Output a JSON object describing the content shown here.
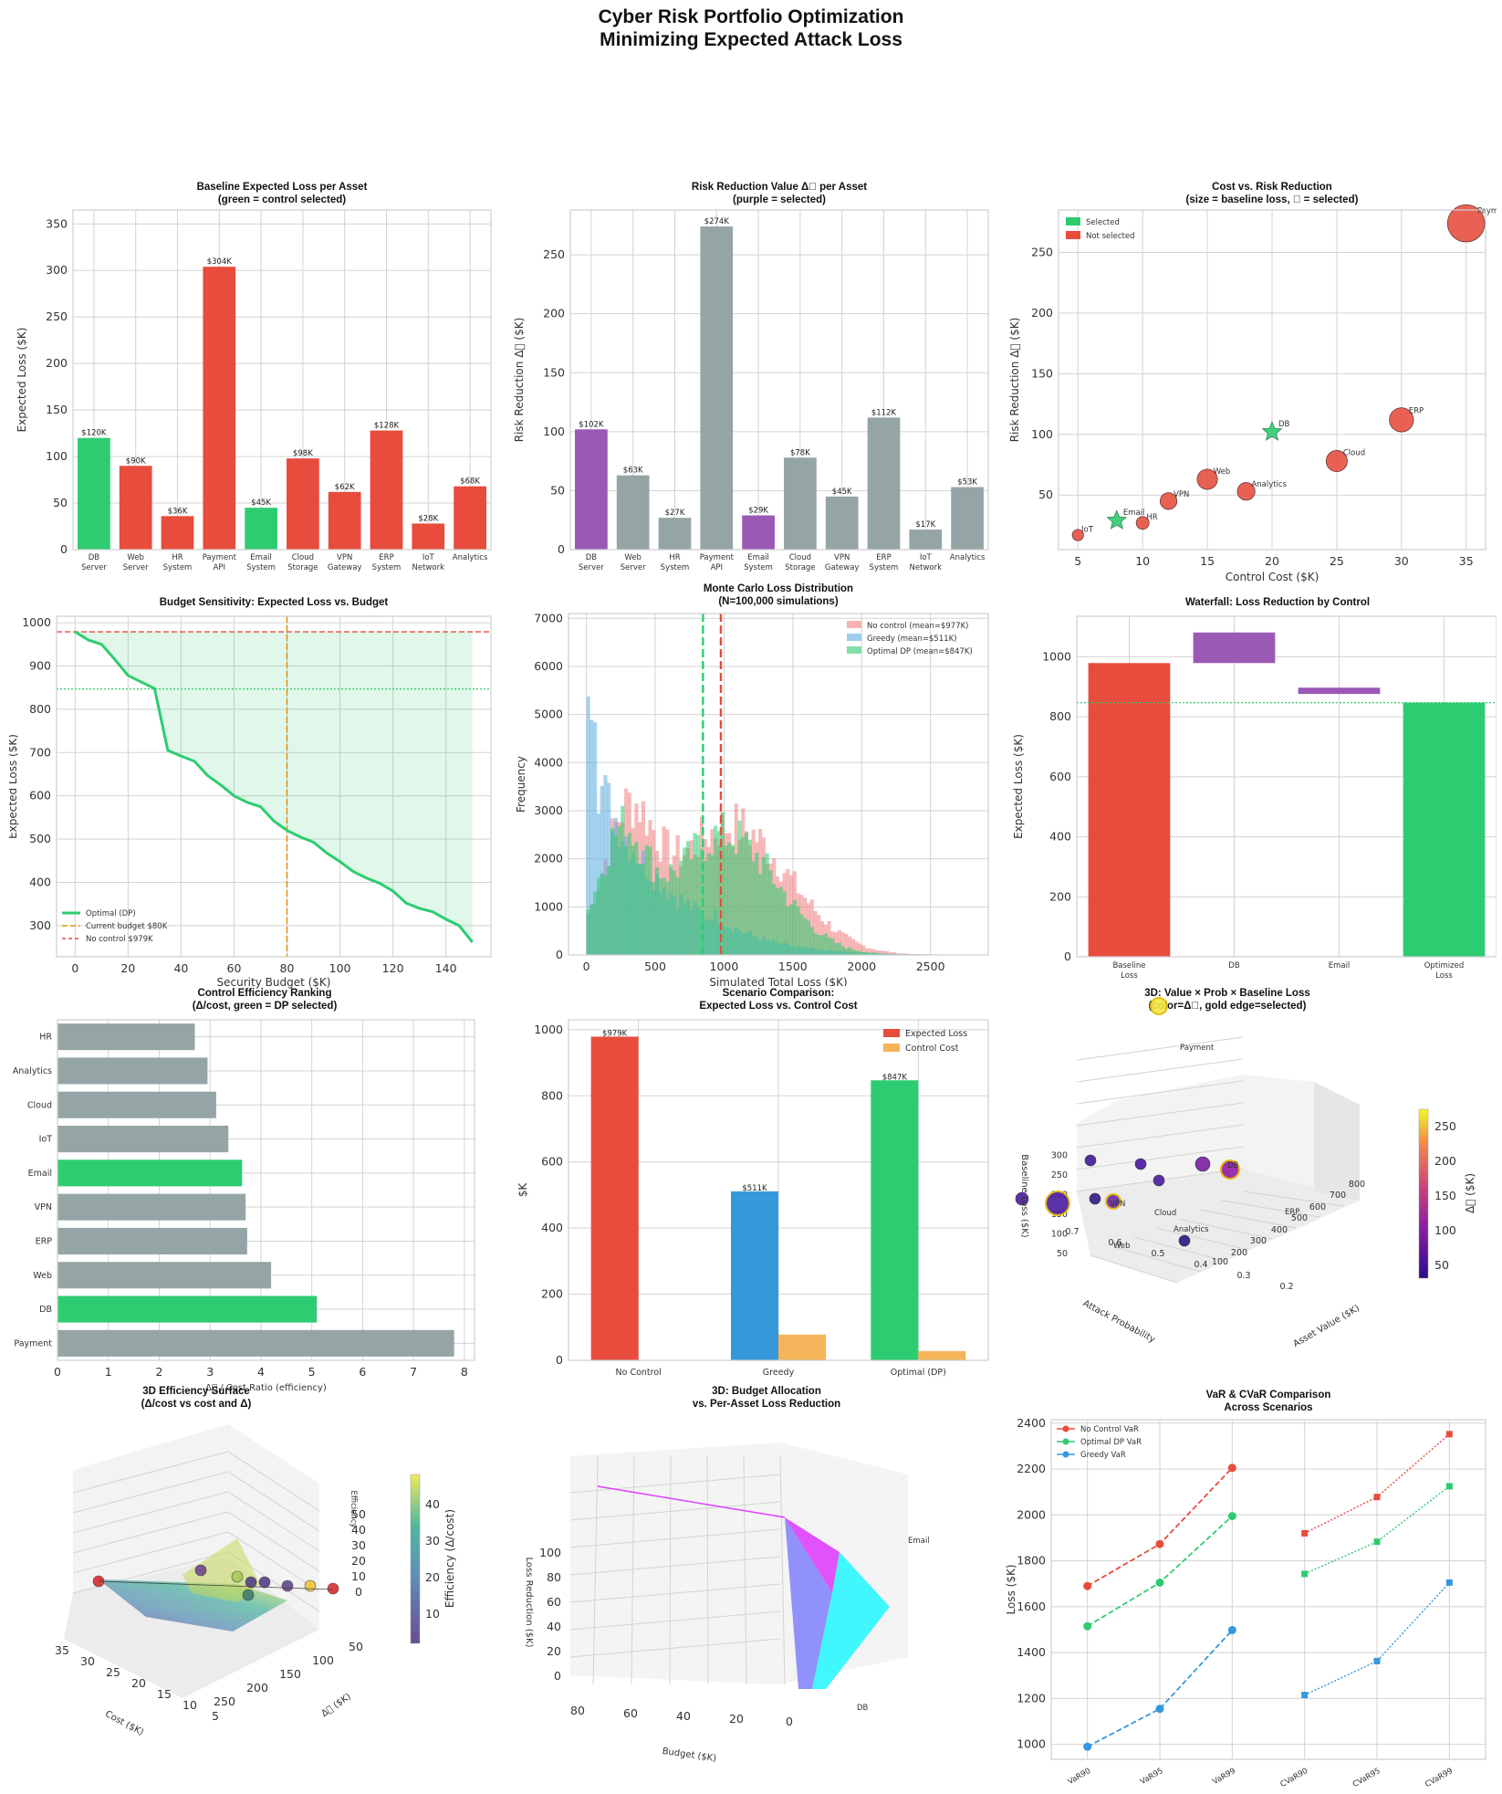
{
  "figure": {
    "title_line1": "Cyber Risk Portfolio Optimization",
    "title_line2": "Minimizing Expected Attack Loss"
  },
  "colors": {
    "selected_green": "#2ecc71",
    "unselected_red": "#e74c3c",
    "purple": "#9b59b6",
    "gray": "#95a5a6",
    "blue": "#3498db",
    "orange": "#f5b45a",
    "dashed_orange": "#e8930c"
  },
  "chart_data": [
    {
      "type": "bar",
      "title_line1": "Baseline Expected Loss per Asset",
      "title_line2": "(green = control selected)",
      "ylabel": "Expected Loss ($K)",
      "categories": [
        "DB\nServer",
        "Web\nServer",
        "HR\nSystem",
        "Payment\nAPI",
        "Email\nSystem",
        "Cloud\nStorage",
        "VPN\nGateway",
        "ERP\nSystem",
        "IoT\nNetwork",
        "Analytics"
      ],
      "values": [
        120,
        90,
        36,
        304,
        45,
        98,
        62,
        128,
        28,
        68
      ],
      "value_labels": [
        "$120K",
        "$90K",
        "$36K",
        "$304K",
        "$45K",
        "$98K",
        "$62K",
        "$128K",
        "$28K",
        "$68K"
      ],
      "selected": [
        true,
        false,
        false,
        false,
        true,
        false,
        false,
        false,
        false,
        false
      ],
      "ylim": [
        0,
        365
      ],
      "yticks": [
        0,
        50,
        100,
        150,
        200,
        250,
        300,
        350
      ]
    },
    {
      "type": "bar",
      "title_line1": "Risk Reduction Value Δ⃞ per Asset",
      "title_line2": "(purple = selected)",
      "ylabel": "Risk Reduction Δ⃞ ($K)",
      "categories": [
        "DB\nServer",
        "Web\nServer",
        "HR\nSystem",
        "Payment\nAPI",
        "Email\nSystem",
        "Cloud\nStorage",
        "VPN\nGateway",
        "ERP\nSystem",
        "IoT\nNetwork",
        "Analytics"
      ],
      "values": [
        102,
        63,
        27,
        274,
        29,
        78,
        45,
        112,
        17,
        53
      ],
      "value_labels": [
        "$102K",
        "$63K",
        "$27K",
        "$274K",
        "$29K",
        "$78K",
        "$45K",
        "$112K",
        "$17K",
        "$53K"
      ],
      "selected": [
        true,
        false,
        false,
        false,
        true,
        false,
        false,
        false,
        false,
        false
      ],
      "ylim": [
        0,
        288
      ],
      "yticks": [
        0,
        50,
        100,
        150,
        200,
        250
      ]
    },
    {
      "type": "scatter",
      "title_line1": "Cost vs. Risk Reduction",
      "title_line2": "(size = baseline loss, ⃞ = selected)",
      "xlabel": "Control Cost ($K)",
      "ylabel": "Risk Reduction Δ⃞ ($K)",
      "legend": [
        "Selected",
        "Not selected"
      ],
      "legend_position": "upper left",
      "points": [
        {
          "label": "DB",
          "x": 20,
          "y": 102,
          "baseline": 120,
          "selected": true
        },
        {
          "label": "Web",
          "x": 15,
          "y": 63,
          "baseline": 90,
          "selected": false
        },
        {
          "label": "HR",
          "x": 10,
          "y": 27,
          "baseline": 36,
          "selected": false
        },
        {
          "label": "Payment",
          "x": 35,
          "y": 274,
          "baseline": 304,
          "selected": false
        },
        {
          "label": "Email",
          "x": 8,
          "y": 29,
          "baseline": 45,
          "selected": true
        },
        {
          "label": "Cloud",
          "x": 25,
          "y": 78,
          "baseline": 98,
          "selected": false
        },
        {
          "label": "VPN",
          "x": 12,
          "y": 45,
          "baseline": 62,
          "selected": false
        },
        {
          "label": "ERP",
          "x": 30,
          "y": 112,
          "baseline": 128,
          "selected": false
        },
        {
          "label": "IoT",
          "x": 5,
          "y": 17,
          "baseline": 28,
          "selected": false
        },
        {
          "label": "Analytics",
          "x": 18,
          "y": 53,
          "baseline": 68,
          "selected": false
        }
      ],
      "xlim": [
        3.5,
        36.5
      ],
      "ylim": [
        5,
        285
      ],
      "xticks": [
        5,
        10,
        15,
        20,
        25,
        30,
        35
      ],
      "yticks": [
        50,
        100,
        150,
        200,
        250
      ]
    },
    {
      "type": "line",
      "title": "Budget Sensitivity: Expected Loss vs. Budget",
      "xlabel": "Security Budget ($K)",
      "ylabel": "Expected Loss ($K)",
      "series": [
        {
          "name": "Optimal (DP)",
          "x": [
            0,
            5,
            10,
            15,
            20,
            25,
            30,
            35,
            40,
            45,
            50,
            55,
            60,
            65,
            70,
            75,
            80,
            85,
            90,
            95,
            100,
            105,
            110,
            115,
            120,
            125,
            130,
            135,
            140,
            145,
            150
          ],
          "y": [
            979,
            960,
            950,
            915,
            878,
            863,
            848,
            705,
            692,
            680,
            647,
            625,
            600,
            585,
            575,
            542,
            520,
            505,
            493,
            468,
            448,
            425,
            410,
            398,
            380,
            352,
            340,
            332,
            315,
            300,
            262
          ]
        }
      ],
      "reference_lines": [
        {
          "name": "Current budget $80K",
          "axis": "x",
          "value": 80
        },
        {
          "name": "No control $979K",
          "axis": "y",
          "value": 979
        },
        {
          "name": "",
          "axis": "y",
          "value": 847
        }
      ],
      "xlim": [
        -7,
        157
      ],
      "ylim": [
        228,
        1015
      ],
      "xticks": [
        0,
        20,
        40,
        60,
        80,
        100,
        120,
        140
      ],
      "yticks": [
        300,
        400,
        500,
        600,
        700,
        800,
        900,
        1000
      ],
      "legend_position": "lower left"
    },
    {
      "type": "histogram",
      "title_line1": "Monte Carlo Loss Distribution",
      "title_line2": "(N=100,000 simulations)",
      "xlabel": "Simulated Total Loss ($K)",
      "ylabel": "Frequency",
      "series": [
        {
          "name": "No control  (mean=$977K)",
          "mean": 977
        },
        {
          "name": "Greedy      (mean=$511K)",
          "mean": 511
        },
        {
          "name": "Optimal DP  (mean=$847K)",
          "mean": 847
        }
      ],
      "xlim": [
        -130,
        2920
      ],
      "ylim": [
        0,
        7100
      ],
      "xticks": [
        0,
        500,
        1000,
        1500,
        2000,
        2500
      ],
      "yticks": [
        0,
        1000,
        2000,
        3000,
        4000,
        5000,
        6000,
        7000
      ]
    },
    {
      "type": "waterfall",
      "title": "Waterfall: Loss Reduction by Control",
      "ylabel": "Expected Loss ($K)",
      "categories": [
        "Baseline\nLoss",
        "DB",
        "Email",
        "Optimized\nLoss"
      ],
      "bars": [
        {
          "label": "Baseline Loss",
          "bottom": 0,
          "top": 979
        },
        {
          "label": "DB",
          "bottom": 979,
          "top": 1081
        },
        {
          "label": "Email",
          "bottom": 876,
          "top": 897
        },
        {
          "label": "Optimized Loss",
          "bottom": 0,
          "top": 847
        }
      ],
      "reference_line": 847,
      "ylim": [
        0,
        1135
      ],
      "yticks": [
        0,
        200,
        400,
        600,
        800,
        1000
      ]
    },
    {
      "type": "barh",
      "title_line1": "Control Efficiency Ranking",
      "title_line2": "(Δ/cost, green = DP selected)",
      "xlabel": "Δ⃞ / Cost Ratio (efficiency)",
      "categories": [
        "HR",
        "Analytics",
        "Cloud",
        "IoT",
        "Email",
        "VPN",
        "ERP",
        "Web",
        "DB",
        "Payment"
      ],
      "values": [
        2.7,
        2.95,
        3.12,
        3.36,
        3.63,
        3.7,
        3.73,
        4.2,
        5.1,
        7.8
      ],
      "selected": [
        false,
        false,
        false,
        false,
        true,
        false,
        false,
        false,
        true,
        false
      ],
      "xlim": [
        0,
        8.2
      ],
      "xticks": [
        0,
        1,
        2,
        3,
        4,
        5,
        6,
        7,
        8
      ]
    },
    {
      "type": "bar",
      "title_line1": "Scenario Comparison:",
      "title_line2": "Expected Loss vs. Control Cost",
      "ylabel": "$K",
      "categories": [
        "No Control",
        "Greedy",
        "Optimal (DP)"
      ],
      "series": [
        {
          "name": "Expected Loss",
          "values": [
            979,
            511,
            847
          ],
          "labels": [
            "$979K",
            "$511K",
            "$847K"
          ]
        },
        {
          "name": "Control Cost",
          "values": [
            0,
            78,
            28
          ]
        }
      ],
      "ylim": [
        0,
        1030
      ],
      "yticks": [
        0,
        200,
        400,
        600,
        800,
        1000
      ],
      "legend_position": "upper right"
    },
    {
      "type": "scatter3d",
      "title_line1": "3D: Value × Prob × Baseline Loss",
      "title_line2": "(color=Δ⃞, gold edge=selected)",
      "xlabel": "Asset Value ($K)",
      "ylabel": "Attack Probability",
      "zlabel": "Baseline Loss ($K)",
      "colorbar_label": "Δ⃞ ($K)",
      "colorbar_ticks": [
        50,
        100,
        150,
        200,
        250
      ],
      "point_labels": [
        "Payment",
        "DB",
        "ERP",
        "Cloud",
        "VPN",
        "Web",
        "Analytics"
      ],
      "xticks": [
        100,
        200,
        300,
        400,
        500,
        600,
        700,
        800
      ],
      "yticks": [
        0.2,
        0.3,
        0.4,
        0.5,
        0.6,
        0.7
      ],
      "zticks": [
        50,
        100,
        150,
        200,
        250,
        300
      ]
    },
    {
      "type": "surface3d",
      "title_line1": "3D Efficiency Surface",
      "title_line2": "(Δ/cost vs cost and Δ)",
      "xlabel": "Cost ($K)",
      "ylabel": "Δ⃞ ($K)",
      "zlabel": "Efficiency",
      "colorbar_label": "Efficiency (Δ/cost)",
      "colorbar_ticks": [
        10,
        20,
        30,
        40
      ],
      "xticks": [
        35,
        30,
        25,
        20,
        15,
        10,
        5
      ],
      "yticks": [
        50,
        100,
        150,
        200,
        250
      ],
      "zticks": [
        0,
        10,
        20,
        30,
        40,
        50
      ]
    },
    {
      "type": "surface3d",
      "title_line1": "3D: Budget Allocation",
      "title_line2": "vs. Per-Asset Loss Reduction",
      "xlabel": "Budget ($K)",
      "zlabel": "Loss Reduction ($K)",
      "category_labels": [
        "Email",
        "DB"
      ],
      "xticks": [
        80,
        60,
        40,
        20,
        0
      ],
      "zticks": [
        0,
        20,
        40,
        60,
        80,
        100
      ]
    },
    {
      "type": "line",
      "title_line1": "VaR & CVaR Comparison",
      "title_line2": "Across Scenarios",
      "ylabel": "Loss ($K)",
      "categories": [
        "VaR90",
        "VaR95",
        "VaR99",
        "CVaR90",
        "CVaR95",
        "CVaR99"
      ],
      "series": [
        {
          "name": "No Control VaR",
          "var": [
            1690,
            1873,
            2205
          ],
          "cvar": [
            1920,
            2078,
            2352
          ]
        },
        {
          "name": "Optimal DP VaR",
          "var": [
            1515,
            1705,
            1995
          ],
          "cvar": [
            1743,
            1883,
            2125
          ]
        },
        {
          "name": "Greedy VaR",
          "var": [
            990,
            1155,
            1498
          ],
          "cvar": [
            1215,
            1363,
            1705
          ]
        }
      ],
      "ylim": [
        935,
        2415
      ],
      "yticks": [
        1000,
        1200,
        1400,
        1600,
        1800,
        2000,
        2200,
        2400
      ],
      "legend_position": "upper left"
    }
  ]
}
